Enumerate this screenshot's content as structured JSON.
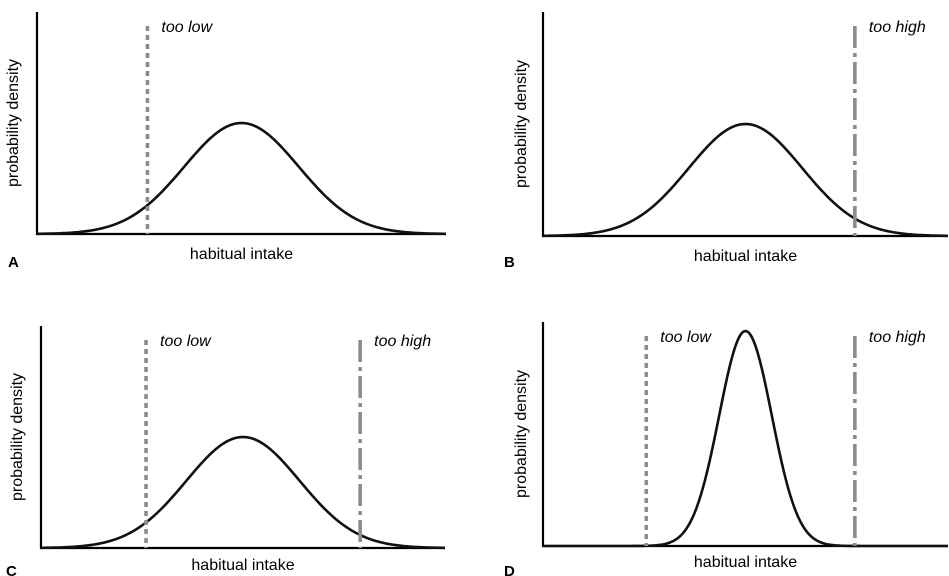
{
  "chart_data": [
    {
      "type": "line",
      "panel": "A",
      "xlabel": "habitual intake",
      "ylabel": "probability density",
      "xlim": [
        0,
        10
      ],
      "ylim": [
        0,
        1
      ],
      "grid": false,
      "series": [
        {
          "mean": 5.0,
          "sd": 1.4,
          "peak": 0.5
        }
      ],
      "thresholds": [
        {
          "kind": "low",
          "label": "too low",
          "x": 2.7
        }
      ]
    },
    {
      "type": "line",
      "panel": "B",
      "xlabel": "habitual intake",
      "ylabel": "probability density",
      "xlim": [
        0,
        10
      ],
      "ylim": [
        0,
        1
      ],
      "grid": false,
      "series": [
        {
          "mean": 5.0,
          "sd": 1.4,
          "peak": 0.5
        }
      ],
      "thresholds": [
        {
          "kind": "high",
          "label": "too high",
          "x": 7.7
        }
      ]
    },
    {
      "type": "line",
      "panel": "C",
      "xlabel": "habitual intake",
      "ylabel": "probability density",
      "xlim": [
        0,
        10
      ],
      "ylim": [
        0,
        1
      ],
      "grid": false,
      "series": [
        {
          "mean": 5.0,
          "sd": 1.4,
          "peak": 0.5
        }
      ],
      "thresholds": [
        {
          "kind": "low",
          "label": "too low",
          "x": 2.6
        },
        {
          "kind": "high",
          "label": "too high",
          "x": 7.9
        }
      ]
    },
    {
      "type": "line",
      "panel": "D",
      "xlabel": "habitual intake",
      "ylabel": "probability density",
      "xlim": [
        0,
        10
      ],
      "ylim": [
        0,
        1
      ],
      "grid": false,
      "series": [
        {
          "mean": 5.0,
          "sd": 0.65,
          "peak": 0.96
        }
      ],
      "thresholds": [
        {
          "kind": "low",
          "label": "too low",
          "x": 2.55
        },
        {
          "kind": "high",
          "label": "too high",
          "x": 7.7
        }
      ]
    }
  ]
}
